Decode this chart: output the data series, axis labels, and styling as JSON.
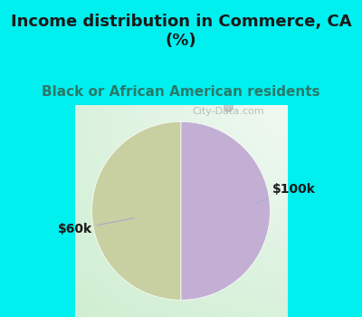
{
  "title": "Income distribution in Commerce, CA\n(%)",
  "subtitle": "Black or African American residents",
  "slices": [
    50.0,
    50.0
  ],
  "labels": [
    "$60k",
    "$100k"
  ],
  "colors": [
    "#c8cfa0",
    "#c4afd4"
  ],
  "bg_color_top": "#00f0f0",
  "title_fontsize": 13,
  "subtitle_fontsize": 11,
  "label_fontsize": 10,
  "startangle": 90,
  "watermark": "City-Data.com",
  "title_color": "#1a1a1a",
  "subtitle_color": "#2a7a6a",
  "label_color": "#1a1a1a",
  "line_color": "#aaaacc"
}
